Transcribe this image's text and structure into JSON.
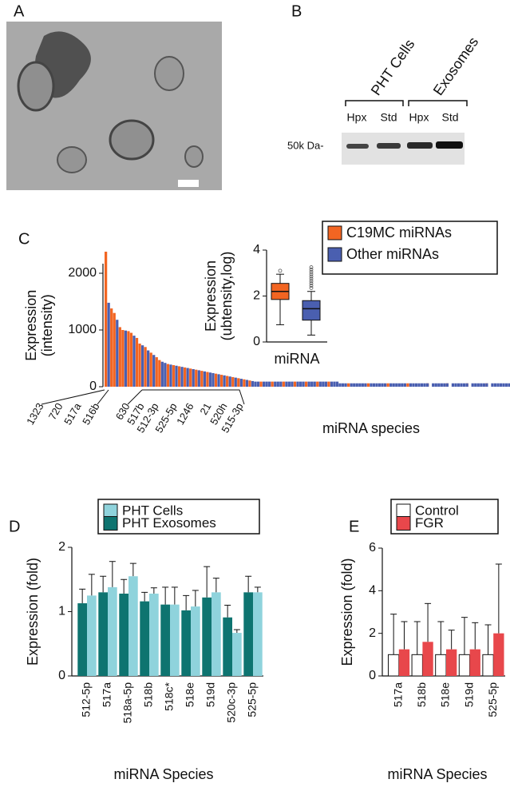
{
  "panel_labels": [
    "A",
    "B",
    "C",
    "D",
    "E"
  ],
  "blot": {
    "groups": [
      "PHT Cells",
      "Exosomes"
    ],
    "lanes": [
      "Hpx",
      "Std",
      "Hpx",
      "Std"
    ],
    "marker": "50k Da-"
  },
  "chart_data": [
    {
      "type": "bar",
      "ylabel": [
        "Expression",
        "(intensity)"
      ],
      "xlabel": "miRNA species",
      "annotations": [
        "1323",
        "720",
        "517a",
        "516b",
        "630",
        "517b",
        "512-3p",
        "525-5p",
        "1246",
        "21",
        "520h",
        "515-3p"
      ],
      "ylim": [
        0,
        2500
      ],
      "yticks": [
        0,
        1000,
        2000
      ],
      "series": [
        {
          "name": "C19MC miRNAs",
          "color": "#f26522",
          "values": [
            2380,
            null,
            1380,
            1300,
            null,
            1050,
            1000,
            null,
            980,
            950,
            null,
            860,
            760,
            null,
            700,
            null,
            600,
            null,
            520,
            470,
            null,
            null,
            400,
            null,
            380,
            null,
            360,
            null,
            340,
            null,
            320,
            null,
            300,
            null,
            280,
            null,
            260,
            null,
            null,
            230,
            null,
            210,
            null,
            190,
            null,
            170,
            null,
            150,
            null,
            130,
            null,
            110,
            null,
            null,
            null,
            90,
            null,
            null,
            null,
            90,
            null,
            null,
            null,
            90,
            null,
            null,
            null,
            90,
            null,
            null,
            null,
            90,
            null,
            null,
            null,
            90,
            null,
            null,
            null,
            90,
            null,
            null,
            null,
            null,
            null,
            null,
            60,
            null,
            null,
            null,
            null,
            null,
            null,
            60,
            null,
            null,
            null,
            null,
            null,
            null,
            60,
            null,
            null,
            null,
            null,
            null,
            null,
            60,
            null,
            null,
            null,
            null,
            null,
            null,
            60,
            null,
            null,
            null,
            null,
            null,
            null,
            60,
            null,
            null,
            null,
            null,
            null,
            null,
            60,
            null,
            null,
            null,
            null,
            null,
            null,
            60,
            null,
            null,
            null,
            null,
            null,
            null
          ]
        },
        {
          "name": "Other miRNAs",
          "color": "#4a5fb0",
          "values": [
            null,
            1480,
            null,
            null,
            1180,
            null,
            null,
            990,
            null,
            null,
            900,
            null,
            null,
            730,
            null,
            640,
            null,
            560,
            null,
            null,
            440,
            420,
            null,
            390,
            null,
            370,
            null,
            350,
            null,
            330,
            null,
            310,
            null,
            290,
            null,
            270,
            null,
            250,
            240,
            null,
            220,
            null,
            200,
            null,
            180,
            null,
            160,
            null,
            140,
            null,
            120,
            null,
            100,
            90,
            90,
            null,
            90,
            90,
            90,
            null,
            90,
            90,
            90,
            null,
            90,
            90,
            90,
            null,
            90,
            90,
            90,
            null,
            90,
            90,
            90,
            null,
            90,
            90,
            90,
            null,
            90,
            90,
            90,
            60,
            60,
            60,
            null,
            60,
            60,
            60,
            60,
            60,
            60,
            null,
            60,
            60,
            60,
            60,
            60,
            60,
            null,
            60,
            60,
            60,
            60,
            60,
            60,
            null,
            60,
            60,
            60,
            60,
            60,
            60,
            60,
            null,
            60,
            60,
            60,
            60,
            60,
            60,
            null,
            60,
            60,
            60,
            60,
            60,
            60,
            null,
            60,
            60,
            60,
            60,
            60,
            60,
            null,
            60,
            60,
            60,
            60,
            60,
            60,
            60
          ]
        }
      ]
    },
    {
      "type": "box",
      "ylabel": [
        "Expression",
        "(ubtensity,log)"
      ],
      "xlabel": "miRNA",
      "ylim": [
        0,
        4
      ],
      "yticks": [
        0,
        2,
        4
      ],
      "boxes": [
        {
          "color": "#f26522",
          "low": 0.75,
          "q1": 1.85,
          "median": 2.2,
          "q3": 2.55,
          "high": 2.95,
          "outliers": [
            3.1
          ]
        },
        {
          "color": "#4a5fb0",
          "low": 0.3,
          "q1": 0.95,
          "median": 1.45,
          "q3": 1.8,
          "high": 2.2,
          "outliers": [
            2.35,
            2.45,
            2.55,
            2.65,
            2.75,
            2.85,
            2.95,
            3.05,
            3.15,
            3.25
          ]
        }
      ]
    },
    {
      "type": "grouped_bar",
      "ylabel": "Expression (fold)",
      "xlabel": "miRNA Species",
      "categories": [
        "512-5p",
        "517a",
        "518a-5p",
        "518b",
        "518c*",
        "518e",
        "519d",
        "520c-3p",
        "525-5p"
      ],
      "ylim": [
        0,
        2
      ],
      "yticks": [
        0,
        1,
        2
      ],
      "series": [
        {
          "name": "PHT Exosomes",
          "color": "#0e7470",
          "values": [
            1.13,
            1.3,
            1.28,
            1.16,
            1.11,
            1.02,
            1.22,
            0.91,
            1.3
          ],
          "errors": [
            0.22,
            0.25,
            0.22,
            0.14,
            0.27,
            0.23,
            0.48,
            0.19,
            0.25
          ]
        },
        {
          "name": "PHT Cells",
          "color": "#8fd3dc",
          "values": [
            1.25,
            1.38,
            1.55,
            1.28,
            1.11,
            1.08,
            1.3,
            0.67,
            1.3
          ],
          "errors": [
            0.33,
            0.4,
            0.2,
            0.09,
            0.27,
            0.25,
            0.22,
            0.05,
            0.08
          ]
        }
      ],
      "legend_order": [
        1,
        0
      ]
    },
    {
      "type": "grouped_bar",
      "ylabel": "Expression (fold)",
      "xlabel": "miRNA Species",
      "categories": [
        "517a",
        "518b",
        "518e",
        "519d",
        "525-5p"
      ],
      "ylim": [
        0,
        6
      ],
      "yticks": [
        0,
        2,
        4,
        6
      ],
      "series": [
        {
          "name": "Control",
          "color": "#ffffff",
          "values": [
            1,
            1,
            1,
            1,
            1
          ],
          "errors": [
            1.9,
            1.55,
            1.55,
            1.75,
            1.4
          ]
        },
        {
          "name": "FGR",
          "color": "#e8474b",
          "values": [
            1.25,
            1.6,
            1.25,
            1.25,
            2.0
          ],
          "errors": [
            1.3,
            1.8,
            0.9,
            1.25,
            3.25
          ]
        }
      ],
      "legend_order": [
        0,
        1
      ]
    }
  ]
}
